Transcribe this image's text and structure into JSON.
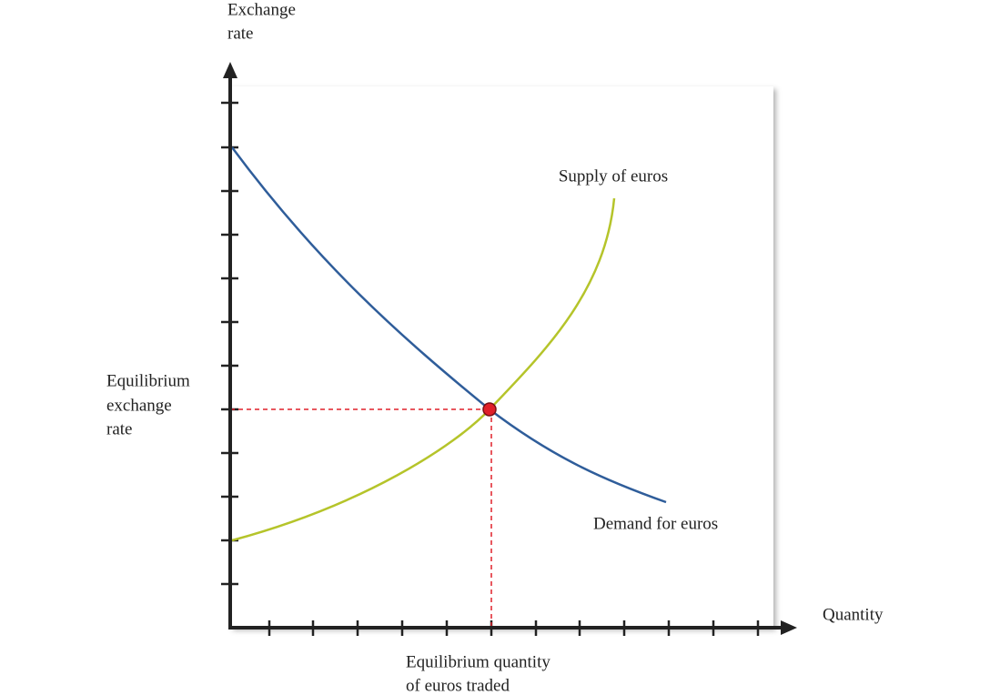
{
  "y_axis_label": [
    "Exchange",
    "rate"
  ],
  "x_axis_label": "Quantity",
  "supply_label": "Supply of euros",
  "demand_label": "Demand for euros",
  "equilibrium_rate_label": [
    "Equilibrium",
    "exchange",
    "rate"
  ],
  "equilibrium_quantity_label": [
    "Equilibrium quantity",
    "of euros traded"
  ]
}
